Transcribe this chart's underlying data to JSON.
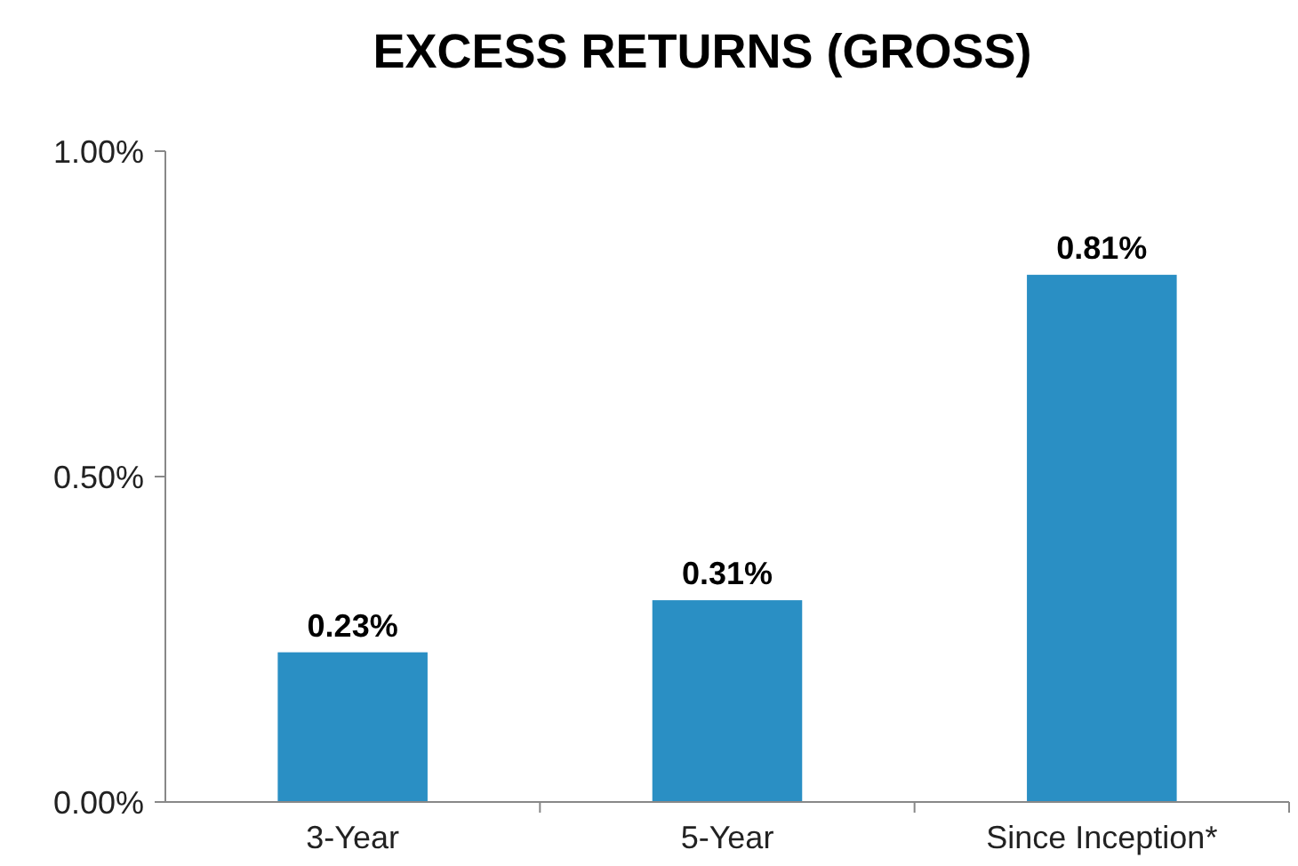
{
  "chart_data": {
    "type": "bar",
    "title": "EXCESS RETURNS (GROSS)",
    "categories": [
      "3-Year",
      "5-Year",
      "Since Inception*"
    ],
    "values": [
      0.23,
      0.31,
      0.81
    ],
    "value_labels": [
      "0.23%",
      "0.31%",
      "0.81%"
    ],
    "color": "#2a8fc4",
    "ylim": [
      0,
      1
    ],
    "yticks": [
      {
        "value": 0,
        "label": "0.00%"
      },
      {
        "value": 0.5,
        "label": "0.50%"
      },
      {
        "value": 1,
        "label": "1.00%"
      }
    ],
    "grid": false
  }
}
